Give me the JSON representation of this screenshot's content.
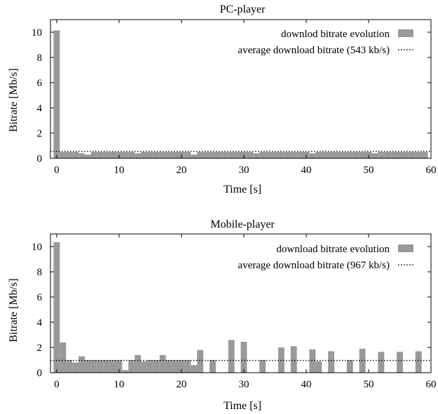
{
  "colors": {
    "bar": "#999999",
    "axis": "#000000",
    "avg_line": "#000000"
  },
  "chart_data": [
    {
      "type": "bar",
      "title": "PC-player",
      "xlabel": "Time [s]",
      "ylabel": "Bitrate [Mb/s]",
      "xlim": [
        -1,
        60
      ],
      "ylim": [
        0,
        11
      ],
      "xticks": [
        0,
        10,
        20,
        30,
        40,
        50,
        60
      ],
      "yticks": [
        0,
        2,
        4,
        6,
        8,
        10
      ],
      "grid": false,
      "legend_position": "top-right",
      "bar_width": 1,
      "series": [
        {
          "name": "downlod bitrate evolution",
          "kind": "bar",
          "x": [
            0,
            1,
            2,
            3,
            4,
            5,
            6,
            7,
            8,
            9,
            10,
            11,
            12,
            13,
            14,
            15,
            16,
            17,
            18,
            19,
            20,
            21,
            22,
            23,
            24,
            25,
            26,
            27,
            28,
            29,
            30,
            31,
            32,
            33,
            34,
            35,
            36,
            37,
            38,
            39,
            40,
            41,
            42,
            43,
            44,
            45,
            46,
            47,
            48,
            49,
            50,
            51,
            52,
            53,
            54,
            55,
            56,
            57,
            58,
            59
          ],
          "values": [
            10.15,
            0.5,
            0.5,
            0.5,
            0.4,
            0.3,
            0.5,
            0.5,
            0.5,
            0.5,
            0.5,
            0.5,
            0.5,
            0.4,
            0.5,
            0.5,
            0.5,
            0.5,
            0.5,
            0.5,
            0.5,
            0.5,
            0.3,
            0.5,
            0.5,
            0.5,
            0.5,
            0.5,
            0.5,
            0.5,
            0.5,
            0.5,
            0.4,
            0.5,
            0.5,
            0.5,
            0.5,
            0.5,
            0.5,
            0.5,
            0.5,
            0.4,
            0.5,
            0.5,
            0.5,
            0.5,
            0.5,
            0.5,
            0.5,
            0.5,
            0.5,
            0.4,
            0.5,
            0.5,
            0.5,
            0.5,
            0.5,
            0.5,
            0.5,
            0.5
          ]
        },
        {
          "name": "average download bitrate (543 kb/s)",
          "kind": "hline",
          "value": 0.543
        }
      ]
    },
    {
      "type": "bar",
      "title": "Mobile-player",
      "xlabel": "Time [s]",
      "ylabel": "Bitrate [Mb/s]",
      "xlim": [
        -1,
        60
      ],
      "ylim": [
        0,
        11
      ],
      "xticks": [
        0,
        10,
        20,
        30,
        40,
        50,
        60
      ],
      "yticks": [
        0,
        2,
        4,
        6,
        8,
        10
      ],
      "grid": false,
      "legend_position": "top-right",
      "bar_width": 1,
      "series": [
        {
          "name": "download bitrate evolution",
          "kind": "bar",
          "x": [
            0,
            1,
            2,
            3,
            4,
            5,
            6,
            7,
            8,
            9,
            10,
            11,
            12,
            13,
            14,
            15,
            16,
            17,
            18,
            19,
            20,
            21,
            22,
            23,
            25,
            28,
            30,
            33,
            36,
            38,
            41,
            42,
            44,
            47,
            49,
            52,
            55,
            58
          ],
          "values": [
            10.35,
            2.4,
            1.0,
            0.8,
            1.3,
            1.0,
            1.0,
            1.0,
            1.0,
            1.0,
            1.0,
            0.2,
            1.0,
            1.4,
            0.9,
            1.0,
            1.0,
            1.4,
            1.0,
            1.0,
            1.0,
            1.0,
            0.6,
            1.8,
            1.0,
            2.6,
            2.45,
            1.0,
            2.0,
            2.1,
            1.85,
            0.9,
            1.7,
            1.0,
            1.9,
            1.65,
            1.65,
            1.7
          ]
        },
        {
          "name": "average download bitrate (967 kb/s)",
          "kind": "hline",
          "value": 0.967
        }
      ]
    }
  ]
}
